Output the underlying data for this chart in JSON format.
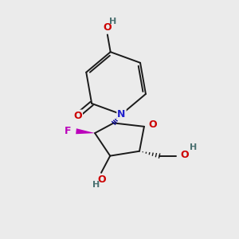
{
  "background_color": "#ebebeb",
  "bond_color": "#1a1a1a",
  "atom_colors": {
    "O": "#cc0000",
    "N": "#2222cc",
    "F": "#bb00bb",
    "C": "#1a1a1a",
    "H": "#4a7070"
  },
  "figsize": [
    3.0,
    3.0
  ],
  "dpi": 100,
  "bond_lw": 1.4,
  "font_size": 9,
  "font_size_h": 8
}
